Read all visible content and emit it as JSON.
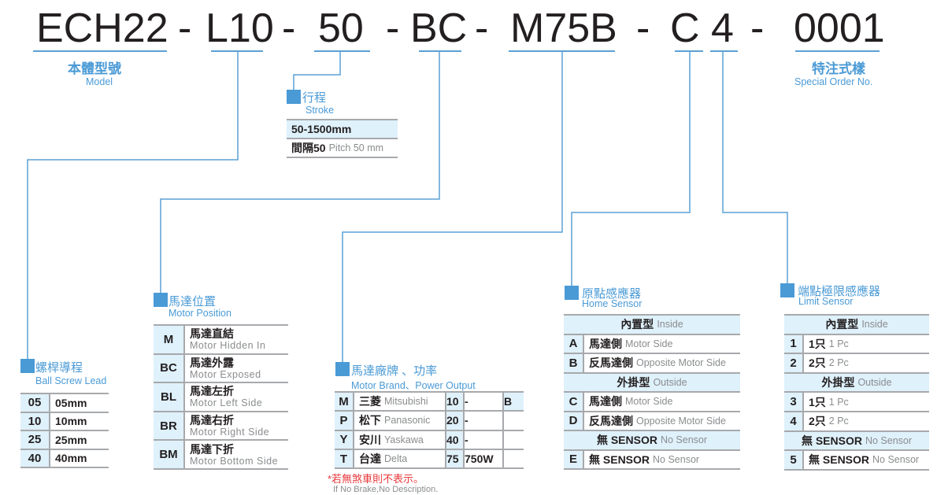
{
  "colors": {
    "accent": "#4a9ad6",
    "cell_highlight": "#dff1fb",
    "note": "#e8393c",
    "code_text": "#231f20"
  },
  "code": {
    "model": "ECH22",
    "lead": "L10",
    "stroke": "50",
    "position": "BC",
    "brand": "M75B",
    "home": "C",
    "limit": "4",
    "special": "0001",
    "dash": "-"
  },
  "labels": {
    "model": {
      "cn": "本體型號",
      "en": "Model"
    },
    "special": {
      "cn": "特注式樣",
      "en": "Special Order No."
    }
  },
  "sections": {
    "stroke": {
      "cn": "行程",
      "en": "Stroke",
      "rows": [
        {
          "cells": [
            {
              "main": "50-1500mm"
            }
          ]
        },
        {
          "cells": [
            {
              "main": "間隔50",
              "sub": "Pitch 50 mm"
            }
          ]
        }
      ]
    },
    "lead": {
      "cn": "螺桿導程",
      "en": "Ball Screw Lead",
      "rows": [
        {
          "code": "05",
          "cells": [
            {
              "main": "05mm"
            }
          ]
        },
        {
          "code": "10",
          "cells": [
            {
              "main": "10mm"
            }
          ]
        },
        {
          "code": "25",
          "cells": [
            {
              "main": "25mm"
            }
          ]
        },
        {
          "code": "40",
          "cells": [
            {
              "main": "40mm"
            }
          ]
        }
      ]
    },
    "position": {
      "cn": "馬達位置",
      "en": "Motor Position",
      "rows": [
        {
          "code": "M",
          "cells": [
            {
              "main": "馬達直結",
              "sub": "Motor Hidden In"
            }
          ]
        },
        {
          "code": "BC",
          "cells": [
            {
              "main": "馬達外露",
              "sub": "Motor Exposed"
            }
          ]
        },
        {
          "code": "BL",
          "cells": [
            {
              "main": "馬達左折",
              "sub": "Motor Left Side"
            }
          ]
        },
        {
          "code": "BR",
          "cells": [
            {
              "main": "馬達右折",
              "sub": "Motor Right Side"
            }
          ]
        },
        {
          "code": "BM",
          "cells": [
            {
              "main": "馬達下折",
              "sub": "Motor Bottom Side"
            }
          ]
        }
      ]
    },
    "brand": {
      "cn": "馬達廠牌 、功率",
      "en": "Motor Brand、Power Output",
      "rows": [
        {
          "code": "M",
          "cells": [
            {
              "main": "三菱",
              "sub": "Mitsubishi"
            },
            {
              "main": "10"
            },
            {
              "main": "-"
            },
            {
              "main": "B"
            }
          ]
        },
        {
          "code": "P",
          "cells": [
            {
              "main": "松下",
              "sub": "Panasonic"
            },
            {
              "main": "20"
            },
            {
              "main": "-"
            },
            {
              "main": ""
            }
          ]
        },
        {
          "code": "Y",
          "cells": [
            {
              "main": "安川",
              "sub": "Yaskawa"
            },
            {
              "main": "40"
            },
            {
              "main": "-"
            },
            {
              "main": ""
            }
          ]
        },
        {
          "code": "T",
          "cells": [
            {
              "main": "台達",
              "sub": "Delta"
            },
            {
              "main": "75"
            },
            {
              "main": "750W"
            },
            {
              "main": ""
            }
          ]
        }
      ],
      "note_cn": "*若無煞車則不表示。",
      "note_en": "If No Brake,No Description."
    },
    "home": {
      "cn": "原點感應器",
      "en": "Home Sensor",
      "rows": [
        {
          "header": true,
          "cells": [
            {
              "main": "內置型",
              "sub": "Inside"
            }
          ]
        },
        {
          "code": "A",
          "cells": [
            {
              "main": "馬達側",
              "sub": "Motor Side"
            }
          ]
        },
        {
          "code": "B",
          "cells": [
            {
              "main": "反馬達側",
              "sub": "Opposite Motor Side"
            }
          ]
        },
        {
          "header": true,
          "cells": [
            {
              "main": "外掛型",
              "sub": "Outside"
            }
          ]
        },
        {
          "code": "C",
          "cells": [
            {
              "main": "馬達側",
              "sub": "Motor Side"
            }
          ]
        },
        {
          "code": "D",
          "cells": [
            {
              "main": "反馬達側",
              "sub": "Opposite Motor Side"
            }
          ]
        },
        {
          "header": true,
          "cells": [
            {
              "main": "無 SENSOR",
              "sub": "No Sensor"
            }
          ]
        },
        {
          "code": "E",
          "cells": [
            {
              "main": "無 SENSOR",
              "sub": "No Sensor"
            }
          ]
        }
      ]
    },
    "limit": {
      "cn": "端點極限感應器",
      "en": "Limit Sensor",
      "rows": [
        {
          "header": true,
          "cells": [
            {
              "main": "內置型",
              "sub": "Inside"
            }
          ]
        },
        {
          "code": "1",
          "cells": [
            {
              "main": "1只",
              "sub": "1 Pc"
            }
          ]
        },
        {
          "code": "2",
          "cells": [
            {
              "main": "2只",
              "sub": "2 Pc"
            }
          ]
        },
        {
          "header": true,
          "cells": [
            {
              "main": "外掛型",
              "sub": "Outside"
            }
          ]
        },
        {
          "code": "3",
          "cells": [
            {
              "main": "1只",
              "sub": "1 Pc"
            }
          ]
        },
        {
          "code": "4",
          "cells": [
            {
              "main": "2只",
              "sub": "2 Pc"
            }
          ]
        },
        {
          "header": true,
          "cells": [
            {
              "main": "無 SENSOR",
              "sub": "No Sensor"
            }
          ]
        },
        {
          "code": "5",
          "cells": [
            {
              "main": "無 SENSOR",
              "sub": "No Sensor"
            }
          ]
        }
      ]
    }
  }
}
